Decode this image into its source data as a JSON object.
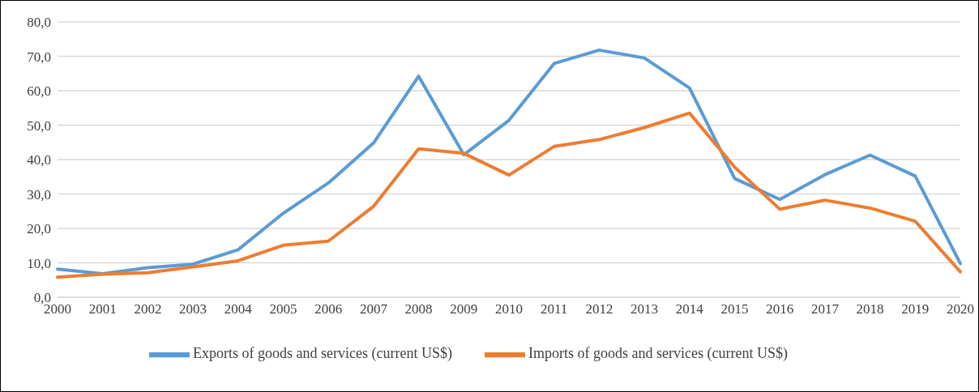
{
  "chart_data": {
    "type": "line",
    "categories": [
      "2000",
      "2001",
      "2002",
      "2003",
      "2004",
      "2005",
      "2006",
      "2007",
      "2008",
      "2009",
      "2010",
      "2011",
      "2012",
      "2013",
      "2014",
      "2015",
      "2016",
      "2017",
      "2018",
      "2019",
      "2020"
    ],
    "series": [
      {
        "name": "Exports of goods and services (current US$)",
        "color": "#5b9bd5",
        "values": [
          8.2,
          6.8,
          8.6,
          9.6,
          13.8,
          24.4,
          33.2,
          44.8,
          64.2,
          41.4,
          51.4,
          67.9,
          71.8,
          69.5,
          60.8,
          34.5,
          28.4,
          35.6,
          41.3,
          35.2,
          9.8
        ]
      },
      {
        "name": "Imports of goods and services (current US$)",
        "color": "#ed7d31",
        "values": [
          5.8,
          6.7,
          7.1,
          8.8,
          10.6,
          15.1,
          16.3,
          26.4,
          43.1,
          41.8,
          35.5,
          43.8,
          45.8,
          49.3,
          53.5,
          37.8,
          25.6,
          28.2,
          25.9,
          22.1,
          7.4
        ]
      }
    ],
    "ylim": [
      0,
      80
    ],
    "yticks": [
      {
        "value": 0,
        "label": "0,0"
      },
      {
        "value": 10,
        "label": "10,0"
      },
      {
        "value": 20,
        "label": "20,0"
      },
      {
        "value": 30,
        "label": "30,0"
      },
      {
        "value": 40,
        "label": "40,0"
      },
      {
        "value": 50,
        "label": "50,0"
      },
      {
        "value": 60,
        "label": "60,0"
      },
      {
        "value": 70,
        "label": "70,0"
      },
      {
        "value": 80,
        "label": "80,0"
      }
    ],
    "grid": "y",
    "legend": "bottom",
    "marker": "none",
    "line_style": "solid"
  }
}
